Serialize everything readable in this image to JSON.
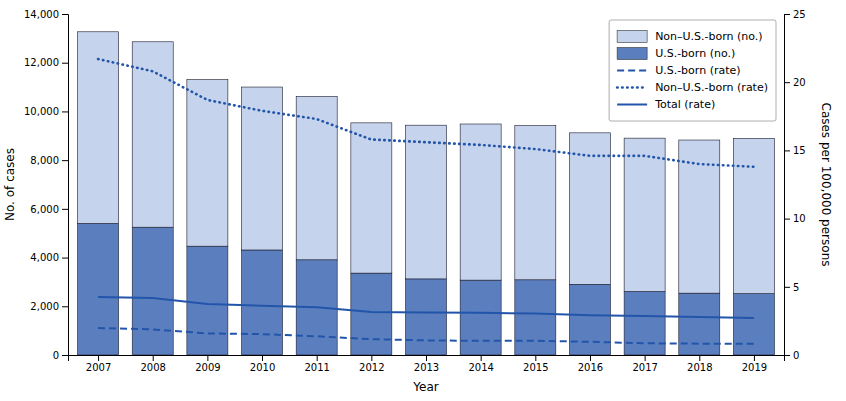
{
  "chart_data": {
    "type": "bar",
    "stacked": true,
    "grid": false,
    "legend": "upper right",
    "xlabel": "Year",
    "ylabel": "No. of cases",
    "y2label": "Cases per 100,000 persons",
    "x": [
      2007,
      2008,
      2009,
      2010,
      2011,
      2012,
      2013,
      2014,
      2015,
      2016,
      2017,
      2018,
      2019
    ],
    "xlim": [
      2006.45,
      2019.55
    ],
    "xticks": [
      2007,
      2008,
      2009,
      2010,
      2011,
      2012,
      2013,
      2014,
      2015,
      2016,
      2017,
      2018,
      2019
    ],
    "ylim": [
      0,
      14000
    ],
    "yticks": [
      0,
      {
        "value": 2000,
        "label": "2,000"
      },
      {
        "value": 4000,
        "label": "4,000"
      },
      {
        "value": 6000,
        "label": "6,000"
      },
      {
        "value": 8000,
        "label": "8,000"
      },
      {
        "value": 10000,
        "label": "10,000"
      },
      {
        "value": 12000,
        "label": "12,000"
      },
      {
        "value": 14000,
        "label": "14,000"
      }
    ],
    "y2lim": [
      0,
      25
    ],
    "y2ticks": [
      0,
      5,
      10,
      15,
      20,
      25
    ],
    "series": [
      {
        "name": "U.S.-born (no.)",
        "type": "bar",
        "color": "#5b7fbe",
        "values": [
          5401,
          5247,
          4468,
          4312,
          3909,
          3362,
          3125,
          3074,
          3088,
          2902,
          2608,
          2540,
          2519
        ]
      },
      {
        "name": "Non–U.S.-born (no.)",
        "type": "bar",
        "color": "#c5d4ec",
        "values": [
          7869,
          7612,
          6838,
          6689,
          6710,
          6169,
          6310,
          6410,
          6328,
          6219,
          6295,
          6286,
          6373
        ]
      },
      {
        "name": "U.S.-born (rate)",
        "type": "line",
        "axis": "y2",
        "color": "#2255aa",
        "line_style": "dashed",
        "values": [
          1.98,
          1.88,
          1.58,
          1.53,
          1.37,
          1.16,
          1.07,
          1.04,
          1.04,
          0.97,
          0.86,
          0.83,
          0.82
        ]
      },
      {
        "name": "Non–U.S.-born (rate)",
        "type": "line",
        "axis": "y2",
        "color": "#2255aa",
        "line_style": "dotted",
        "values": [
          21.7,
          20.8,
          18.7,
          17.9,
          17.3,
          15.8,
          15.6,
          15.4,
          15.1,
          14.6,
          14.6,
          14.0,
          13.8
        ]
      },
      {
        "name": "Total (rate)",
        "type": "line",
        "axis": "y2",
        "color": "#2255aa",
        "line_style": "solid",
        "values": [
          4.26,
          4.17,
          3.74,
          3.61,
          3.5,
          3.16,
          3.12,
          3.09,
          3.04,
          2.91,
          2.86,
          2.78,
          2.71
        ]
      }
    ]
  }
}
